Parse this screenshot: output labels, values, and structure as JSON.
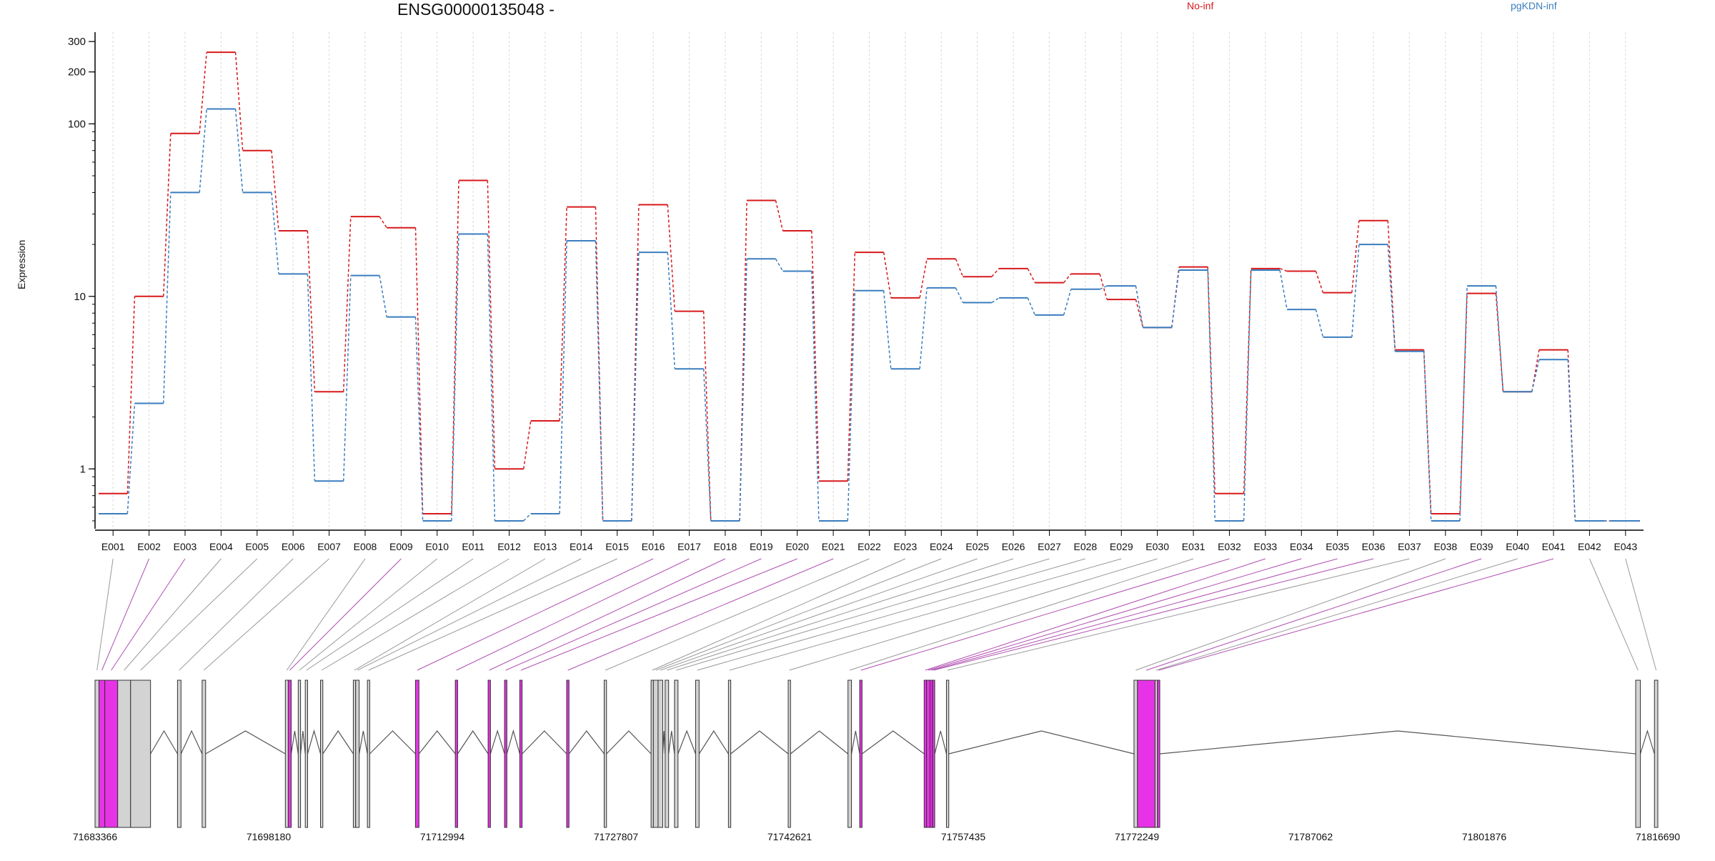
{
  "chart_data": {
    "type": "line",
    "title": "ENSG00000135048 -",
    "ylabel": "Expression",
    "xlabel": "",
    "y_scale": "log",
    "ylim": [
      0.45,
      340
    ],
    "y_ticks": [
      "1",
      "10",
      "100",
      "200",
      "300"
    ],
    "y_tick_values": [
      1,
      10,
      100,
      200,
      300
    ],
    "grid": "vertical dashed lines at each exon",
    "legend_position": "top",
    "categories": [
      "E001",
      "E002",
      "E003",
      "E004",
      "E005",
      "E006",
      "E007",
      "E008",
      "E009",
      "E010",
      "E011",
      "E012",
      "E013",
      "E014",
      "E015",
      "E016",
      "E017",
      "E018",
      "E019",
      "E020",
      "E021",
      "E022",
      "E023",
      "E024",
      "E025",
      "E026",
      "E027",
      "E028",
      "E029",
      "E030",
      "E031",
      "E032",
      "E033",
      "E034",
      "E035",
      "E036",
      "E037",
      "E038",
      "E039",
      "E040",
      "E041",
      "E042",
      "E043"
    ],
    "series": [
      {
        "name": "No-inf",
        "color": "#d7191c",
        "values": [
          0.72,
          10,
          88,
          260,
          70,
          24,
          2.8,
          29,
          25,
          0.55,
          47,
          1.0,
          1.9,
          33,
          0.5,
          34,
          8.2,
          0.5,
          36,
          24,
          0.85,
          18,
          9.8,
          16.5,
          13,
          14.5,
          12,
          13.5,
          9.6,
          6.6,
          14.8,
          0.72,
          14.5,
          14,
          10.5,
          27.5,
          4.9,
          0.55,
          10.4,
          2.8,
          4.9,
          0.5,
          0.5
        ]
      },
      {
        "name": "pgKDN-inf",
        "color": "#3a7dbf",
        "values": [
          0.55,
          2.4,
          40,
          122,
          40,
          13.5,
          0.85,
          13.2,
          7.6,
          0.5,
          23,
          0.5,
          0.55,
          21,
          0.5,
          18,
          3.8,
          0.5,
          16.5,
          14,
          0.5,
          10.8,
          3.8,
          11.2,
          9.2,
          9.8,
          7.8,
          11,
          11.5,
          6.6,
          14.2,
          0.5,
          14.2,
          8.4,
          5.8,
          20,
          4.8,
          0.5,
          11.5,
          2.8,
          4.3,
          0.5,
          0.5
        ]
      }
    ],
    "gene_model": {
      "coordinate_labels": [
        "71683366",
        "71698180",
        "71712994",
        "71727807",
        "71742621",
        "71757435",
        "71772249",
        "71787062",
        "71801876",
        "71816690"
      ],
      "genomic_range": [
        71683366,
        71816690
      ],
      "exon_starts": [
        71683366,
        71683700,
        71684200,
        71685300,
        71686400,
        71690400,
        71692500,
        71699600,
        71699850,
        71700700,
        71701300,
        71702600,
        71705400,
        71705600,
        71706600,
        71710700,
        71714100,
        71716900,
        71718300,
        71719600,
        71723600,
        71726800,
        71730800,
        71731000,
        71731400,
        71732000,
        71732800,
        71734600,
        71737400,
        71742500,
        71747600,
        71748600,
        71754100,
        71754300,
        71754600,
        71754800,
        71756000,
        71772000,
        71772300,
        71773800,
        71774000,
        71814800,
        71816400
      ],
      "exon_ends": [
        71683700,
        71684200,
        71685300,
        71686400,
        71688100,
        71690700,
        71692800,
        71699850,
        71700100,
        71700900,
        71701500,
        71702800,
        71705600,
        71705900,
        71706800,
        71711000,
        71714300,
        71717100,
        71718500,
        71719800,
        71723800,
        71727000,
        71731000,
        71731400,
        71731800,
        71732300,
        71733100,
        71734900,
        71737600,
        71742700,
        71747900,
        71748800,
        71754300,
        71754600,
        71754800,
        71755000,
        71756200,
        71772300,
        71773800,
        71774000,
        71774200,
        71815200,
        71816690
      ],
      "highlighted_exons": [
        "E002",
        "E003",
        "E009",
        "E016",
        "E017",
        "E018",
        "E019",
        "E020",
        "E021",
        "E032",
        "E033",
        "E034",
        "E035",
        "E036",
        "E039",
        "E041"
      ],
      "highlight_color": "#e633e6",
      "exon_fill": "#d3d3d3",
      "intron_color": "#555555"
    }
  }
}
